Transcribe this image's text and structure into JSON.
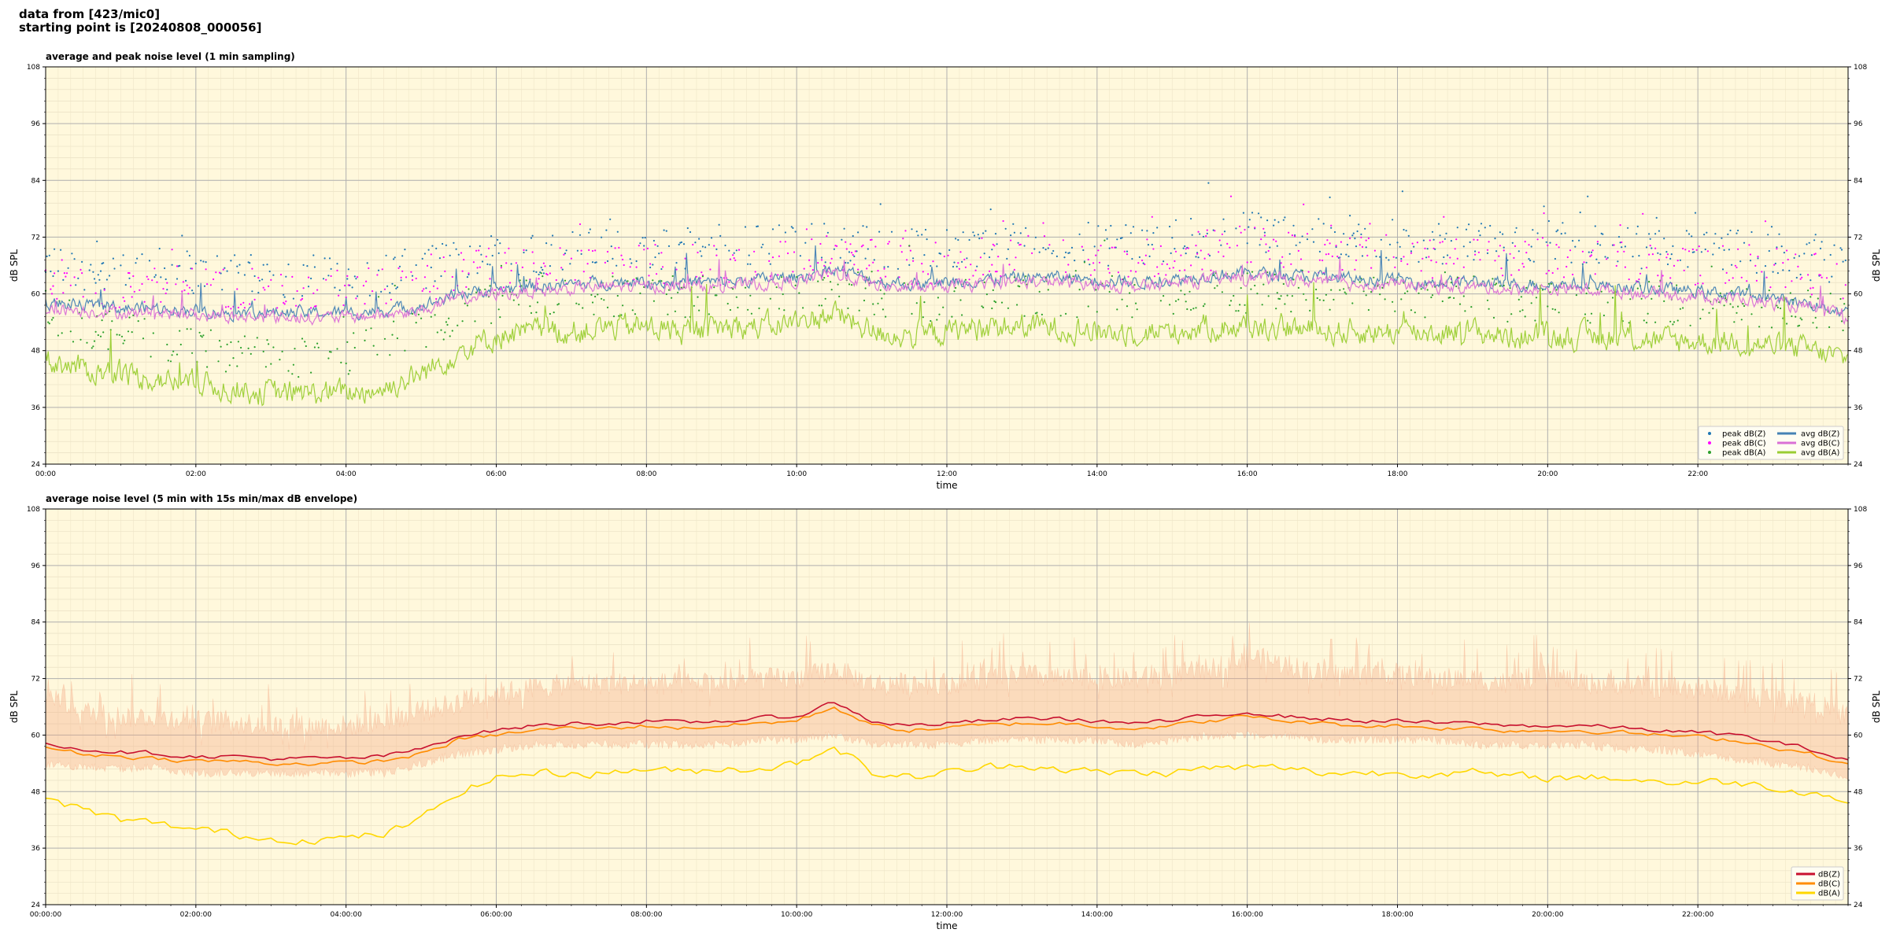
{
  "header": {
    "line1": "data from [423/mic0]",
    "line2": "starting point is [20240808_000056]"
  },
  "chart_data": [
    {
      "type": "line",
      "title": "average and peak noise level (1 min sampling)",
      "xlabel": "time",
      "ylabel": "dB SPL",
      "ylim": [
        24,
        108
      ],
      "yticks": [
        24,
        36,
        48,
        60,
        72,
        84,
        96,
        108
      ],
      "xlim_hours": [
        0,
        24
      ],
      "xtick_labels": [
        "00:00",
        "02:00",
        "04:00",
        "06:00",
        "08:00",
        "10:00",
        "12:00",
        "14:00",
        "16:00",
        "18:00",
        "20:00",
        "22:00"
      ],
      "grid": true,
      "legend_position": "bottom-right",
      "x_hours": [
        0,
        0.5,
        1,
        1.5,
        2,
        2.5,
        3,
        3.5,
        4,
        4.5,
        5,
        5.5,
        6,
        6.5,
        7,
        7.5,
        8,
        8.5,
        9,
        9.5,
        10,
        10.5,
        11,
        11.5,
        12,
        12.5,
        13,
        13.5,
        14,
        14.5,
        15,
        15.5,
        16,
        16.5,
        17,
        17.5,
        18,
        18.5,
        19,
        19.5,
        20,
        20.5,
        21,
        21.5,
        22,
        22.5,
        23,
        23.5,
        24
      ],
      "series": [
        {
          "name": "peak dB(Z)",
          "kind": "points",
          "color": "#1f77b4",
          "values": [
            65,
            64,
            63,
            64,
            63,
            63,
            62,
            62,
            62,
            63,
            64,
            66,
            67,
            67,
            68,
            68,
            68,
            68,
            68,
            69,
            69,
            70,
            69,
            68,
            68,
            69,
            70,
            69,
            69,
            69,
            70,
            71,
            72,
            71,
            70,
            70,
            70,
            69,
            69,
            69,
            70,
            69,
            69,
            68,
            68,
            68,
            67,
            66,
            65
          ]
        },
        {
          "name": "peak dB(C)",
          "kind": "points",
          "color": "#ff00ff",
          "values": [
            62,
            61,
            60,
            61,
            60,
            60,
            59,
            59,
            59,
            60,
            61,
            63,
            64,
            64,
            65,
            65,
            65,
            65,
            65,
            66,
            66,
            67,
            66,
            65,
            65,
            66,
            67,
            66,
            66,
            66,
            67,
            68,
            69,
            68,
            67,
            67,
            67,
            66,
            66,
            66,
            67,
            66,
            66,
            65,
            65,
            65,
            64,
            63,
            62
          ]
        },
        {
          "name": "peak dB(A)",
          "kind": "points",
          "color": "#2ca02c",
          "values": [
            55,
            52,
            50,
            49,
            47,
            46,
            45,
            45,
            46,
            48,
            51,
            55,
            57,
            58,
            58,
            58,
            58,
            58,
            58,
            59,
            59,
            61,
            58,
            57,
            57,
            58,
            58,
            58,
            58,
            58,
            58,
            59,
            59,
            59,
            58,
            58,
            58,
            58,
            58,
            57,
            57,
            57,
            57,
            57,
            56,
            56,
            56,
            55,
            54
          ]
        },
        {
          "name": "avg dB(Z)",
          "kind": "line",
          "color": "#4682b4",
          "values": [
            58,
            57.5,
            57,
            57,
            56.5,
            56,
            56,
            56,
            56,
            56.5,
            57.5,
            60,
            61,
            61.5,
            62,
            62.5,
            62.5,
            62.5,
            62.5,
            63,
            63.5,
            65.5,
            63,
            62,
            62.5,
            63,
            63.5,
            63.5,
            63,
            62.5,
            63,
            64,
            64.5,
            64,
            63.5,
            63,
            63,
            62.5,
            62.5,
            62,
            62,
            62,
            61.5,
            61,
            60.5,
            60,
            59,
            58,
            56
          ]
        },
        {
          "name": "avg dB(C)",
          "kind": "line",
          "color": "#da70d6",
          "values": [
            57,
            56.5,
            56,
            56,
            55.5,
            55,
            55,
            55,
            55,
            55.5,
            56.5,
            59,
            60,
            60.5,
            61,
            61.5,
            61.5,
            61.5,
            61.5,
            62,
            62.5,
            64.5,
            62,
            61,
            61.5,
            62,
            62.5,
            62.5,
            62,
            61.5,
            62,
            63,
            63.5,
            63,
            62.5,
            62,
            62,
            61.5,
            61.5,
            61,
            61,
            61,
            60.5,
            60,
            59.5,
            59,
            58,
            57,
            55
          ]
        },
        {
          "name": "avg dB(A)",
          "kind": "line",
          "color": "#9acd32",
          "values": [
            46,
            44,
            43,
            42,
            41,
            40,
            39,
            39,
            39,
            40,
            43,
            48,
            51,
            52,
            52,
            53,
            53,
            52,
            53,
            53,
            54,
            56,
            52,
            51,
            52,
            53,
            53,
            53,
            52,
            52,
            52,
            53,
            53,
            53,
            52,
            52,
            52,
            52,
            52,
            51,
            51,
            51,
            51,
            50,
            50,
            50,
            49,
            48,
            46
          ]
        }
      ]
    },
    {
      "type": "line",
      "title": "average noise level (5 min with 15s min/max dB envelope)",
      "xlabel": "time",
      "ylabel": "dB SPL",
      "ylim": [
        24,
        108
      ],
      "yticks": [
        24,
        36,
        48,
        60,
        72,
        84,
        96,
        108
      ],
      "xlim_hours": [
        0,
        24
      ],
      "xtick_labels": [
        "00:00:00",
        "02:00:00",
        "04:00:00",
        "06:00:00",
        "08:00:00",
        "10:00:00",
        "12:00:00",
        "14:00:00",
        "16:00:00",
        "18:00:00",
        "20:00:00",
        "22:00:00"
      ],
      "grid": true,
      "legend_position": "bottom-right",
      "x_hours": [
        0,
        0.5,
        1,
        1.5,
        2,
        2.5,
        3,
        3.5,
        4,
        4.5,
        5,
        5.5,
        6,
        6.5,
        7,
        7.5,
        8,
        8.5,
        9,
        9.5,
        10,
        10.5,
        11,
        11.5,
        12,
        12.5,
        13,
        13.5,
        14,
        14.5,
        15,
        15.5,
        16,
        16.5,
        17,
        17.5,
        18,
        18.5,
        19,
        19.5,
        20,
        20.5,
        21,
        21.5,
        22,
        22.5,
        23,
        23.5,
        24
      ],
      "envelope": {
        "color": "#f4a582",
        "max": [
          68,
          64,
          63,
          63,
          62,
          62,
          61,
          61,
          61,
          62,
          64,
          66,
          68,
          69,
          70,
          70,
          70,
          70,
          70,
          71,
          71,
          73,
          70,
          70,
          70,
          71,
          72,
          71,
          71,
          71,
          72,
          73,
          76,
          74,
          72,
          72,
          72,
          71,
          71,
          70,
          72,
          70,
          70,
          69,
          69,
          68,
          67,
          66,
          63
        ],
        "min": [
          55,
          54,
          54,
          54,
          53,
          53,
          53,
          53,
          53,
          53,
          55,
          57,
          58,
          59,
          59,
          59,
          59,
          59,
          59,
          60,
          60,
          61,
          59,
          59,
          59,
          60,
          60,
          60,
          60,
          59,
          60,
          61,
          61,
          61,
          60,
          60,
          60,
          60,
          59,
          59,
          59,
          59,
          58,
          58,
          57,
          56,
          55,
          54,
          52
        ]
      },
      "series": [
        {
          "name": "dB(Z)",
          "color": "#c8102e",
          "values": [
            58.5,
            57,
            56.5,
            56,
            55.5,
            55.5,
            55,
            55,
            55,
            55.5,
            57,
            60,
            61,
            62,
            62.5,
            62.5,
            63,
            62.5,
            63,
            63.5,
            64,
            67,
            63,
            62,
            62.5,
            63,
            63.5,
            63.5,
            63,
            62.5,
            63,
            64,
            65,
            64,
            63.5,
            63,
            63,
            62.5,
            62.5,
            62,
            62,
            62,
            61.5,
            61,
            60.5,
            60,
            58.5,
            57,
            54.5
          ]
        },
        {
          "name": "dB(C)",
          "color": "#ff8c00",
          "values": [
            57.5,
            56,
            55.5,
            55,
            54.5,
            54.5,
            54,
            54,
            54,
            54.5,
            56,
            59,
            60,
            61,
            61.5,
            61.5,
            62,
            61.5,
            62,
            62.5,
            63,
            66,
            62,
            61,
            61.5,
            62,
            62.5,
            62.5,
            62,
            61.5,
            62,
            63,
            64,
            63,
            62.5,
            62,
            62,
            61.5,
            61.5,
            61,
            61,
            61,
            60.5,
            60,
            59.5,
            59,
            57.5,
            56,
            53.5
          ]
        },
        {
          "name": "dB(A)",
          "color": "#ffd700",
          "values": [
            47,
            44,
            42,
            41,
            40,
            39,
            38,
            38,
            38,
            39,
            42,
            48,
            51,
            52,
            52,
            52,
            53,
            52,
            53,
            53,
            54,
            58,
            52,
            51,
            52,
            53,
            54,
            53,
            52,
            52,
            52,
            53,
            53,
            53,
            52,
            52,
            52,
            52,
            52,
            51,
            51,
            51,
            51,
            50,
            50,
            50,
            49,
            48,
            46
          ]
        }
      ]
    }
  ]
}
